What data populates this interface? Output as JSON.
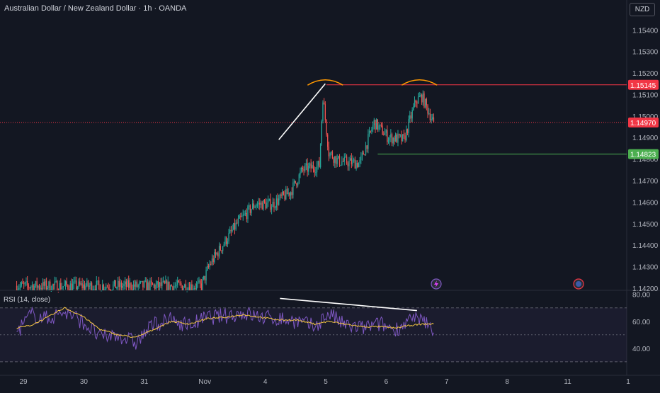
{
  "header": {
    "title": "Australian Dollar / New Zealand Dollar · 1h · OANDA"
  },
  "currency_badge": "NZD",
  "rsi_label": "RSI (14, close)",
  "colors": {
    "background": "#131722",
    "up": "#26a69a",
    "down": "#ef5350",
    "rsi_line": "#7e57c2",
    "rsi_ma": "#f4c542",
    "resistance": "#f23645",
    "support": "#4caf50",
    "trendline": "#ffffff",
    "arc": "#ff9800",
    "axis_text": "#b2b5be"
  },
  "icons": [
    "lightning-event-icon",
    "flag-event-icon"
  ],
  "chart_data": [
    {
      "type": "candlestick",
      "title": "Australian Dollar / New Zealand Dollar · 1h · OANDA",
      "y_ticks": [
        "1.15400",
        "1.15300",
        "1.15200",
        "1.15100",
        "1.15000",
        "1.14900",
        "1.14800",
        "1.14700",
        "1.14600",
        "1.14500",
        "1.14400",
        "1.14300",
        "1.14200"
      ],
      "ylim": [
        1.1419,
        1.1548
      ],
      "x_ticks": [
        "29",
        "30",
        "31",
        "Nov",
        "4",
        "5",
        "6",
        "7",
        "8",
        "11",
        "1"
      ],
      "price_labels": [
        {
          "value": 1.15145,
          "text": "1.15145",
          "kind": "resistance"
        },
        {
          "value": 1.1497,
          "text": "1.14970",
          "kind": "last"
        },
        {
          "value": 1.14823,
          "text": "1.14823",
          "kind": "support"
        }
      ],
      "segments": [
        {
          "index": 0,
          "level": 1.1421
        },
        {
          "index": 155,
          "level": 1.1421
        },
        {
          "index": 162,
          "level": 1.1431
        },
        {
          "index": 185,
          "level": 1.145
        },
        {
          "index": 200,
          "level": 1.1459
        },
        {
          "index": 215,
          "level": 1.1459
        },
        {
          "index": 230,
          "level": 1.1465
        },
        {
          "index": 240,
          "level": 1.1475
        },
        {
          "index": 254,
          "level": 1.1477
        },
        {
          "index": 257,
          "level": 1.1509
        },
        {
          "index": 262,
          "level": 1.1483
        },
        {
          "index": 270,
          "level": 1.1479
        },
        {
          "index": 288,
          "level": 1.1478
        },
        {
          "index": 300,
          "level": 1.1497
        },
        {
          "index": 312,
          "level": 1.149
        },
        {
          "index": 325,
          "level": 1.1489
        },
        {
          "index": 335,
          "level": 1.1507
        },
        {
          "index": 340,
          "level": 1.1509
        },
        {
          "index": 350,
          "level": 1.1497
        }
      ],
      "last_index": 350,
      "x_range": [
        -14,
        512
      ],
      "annotations": {
        "trendline": {
          "from": [
            220,
            1.1489
          ],
          "to": [
            259,
            1.1515
          ]
        },
        "support_start_index": 303,
        "resistance_start_index": 260,
        "arcs": [
          {
            "center_index": 259,
            "value": 1.1516
          },
          {
            "center_index": 338,
            "value": 1.1516
          }
        ]
      }
    },
    {
      "type": "line",
      "title": "RSI (14, close)",
      "y_ticks": [
        "80.00",
        "60.00",
        "40.00"
      ],
      "ylim": [
        21,
        83
      ],
      "bands": [
        70,
        50,
        30
      ],
      "series": [
        {
          "name": "RSI",
          "period": 14
        },
        {
          "name": "RSI MA"
        }
      ],
      "trendline": {
        "from": [
          221,
          77
        ],
        "to": [
          336,
          68
        ]
      },
      "profile": [
        {
          "index": 0,
          "rsi": 52,
          "ma": 55
        },
        {
          "index": 12,
          "rsi": 65,
          "ma": 57
        },
        {
          "index": 26,
          "rsi": 62,
          "ma": 63
        },
        {
          "index": 40,
          "rsi": 67,
          "ma": 70
        },
        {
          "index": 55,
          "rsi": 60,
          "ma": 64
        },
        {
          "index": 70,
          "rsi": 48,
          "ma": 54
        },
        {
          "index": 85,
          "rsi": 50,
          "ma": 50
        },
        {
          "index": 100,
          "rsi": 44,
          "ma": 48
        },
        {
          "index": 115,
          "rsi": 58,
          "ma": 54
        },
        {
          "index": 130,
          "rsi": 61,
          "ma": 60
        },
        {
          "index": 145,
          "rsi": 57,
          "ma": 58
        },
        {
          "index": 160,
          "rsi": 63,
          "ma": 62
        },
        {
          "index": 175,
          "rsi": 64,
          "ma": 63
        },
        {
          "index": 190,
          "rsi": 66,
          "ma": 65
        },
        {
          "index": 205,
          "rsi": 63,
          "ma": 63
        },
        {
          "index": 220,
          "rsi": 62,
          "ma": 61
        },
        {
          "index": 235,
          "rsi": 60,
          "ma": 61
        },
        {
          "index": 250,
          "rsi": 56,
          "ma": 58
        },
        {
          "index": 262,
          "rsi": 66,
          "ma": 60
        },
        {
          "index": 275,
          "rsi": 57,
          "ma": 58
        },
        {
          "index": 290,
          "rsi": 55,
          "ma": 56
        },
        {
          "index": 305,
          "rsi": 58,
          "ma": 56
        },
        {
          "index": 318,
          "rsi": 54,
          "ma": 55
        },
        {
          "index": 330,
          "rsi": 61,
          "ma": 57
        },
        {
          "index": 342,
          "rsi": 60,
          "ma": 58
        },
        {
          "index": 350,
          "rsi": 53,
          "ma": 58
        }
      ]
    }
  ]
}
